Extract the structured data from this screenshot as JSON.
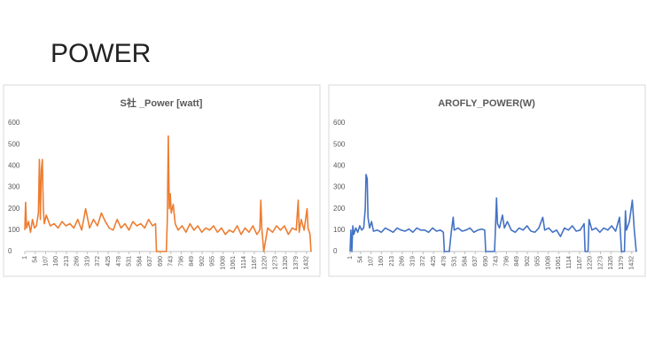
{
  "title": "POWER",
  "chart_data": [
    {
      "type": "line",
      "title": "S社 _Power [watt]",
      "color": "#ed7d31",
      "x": [
        1,
        5,
        10,
        20,
        30,
        40,
        50,
        60,
        70,
        75,
        80,
        85,
        90,
        95,
        100,
        110,
        130,
        150,
        170,
        190,
        210,
        230,
        250,
        270,
        290,
        310,
        330,
        350,
        370,
        390,
        410,
        430,
        450,
        470,
        490,
        510,
        530,
        550,
        570,
        590,
        610,
        630,
        650,
        665,
        670,
        700,
        720,
        725,
        730,
        735,
        740,
        745,
        755,
        765,
        780,
        800,
        820,
        840,
        860,
        880,
        900,
        920,
        940,
        960,
        980,
        1000,
        1020,
        1040,
        1060,
        1080,
        1100,
        1120,
        1140,
        1160,
        1180,
        1195,
        1200,
        1205,
        1215,
        1235,
        1260,
        1280,
        1300,
        1320,
        1340,
        1360,
        1380,
        1390,
        1395,
        1405,
        1420,
        1435,
        1440,
        1450,
        1455
      ],
      "values": [
        100,
        230,
        110,
        140,
        90,
        150,
        110,
        120,
        180,
        430,
        150,
        380,
        430,
        200,
        130,
        170,
        120,
        130,
        110,
        140,
        120,
        130,
        110,
        150,
        100,
        200,
        110,
        150,
        120,
        180,
        140,
        110,
        100,
        150,
        110,
        130,
        100,
        140,
        120,
        130,
        110,
        150,
        120,
        130,
        0,
        0,
        0,
        150,
        540,
        200,
        270,
        180,
        220,
        130,
        100,
        120,
        90,
        130,
        100,
        120,
        90,
        110,
        100,
        120,
        90,
        110,
        80,
        100,
        90,
        120,
        80,
        110,
        90,
        120,
        80,
        100,
        240,
        110,
        0,
        110,
        90,
        120,
        100,
        120,
        80,
        110,
        100,
        240,
        90,
        150,
        100,
        200,
        110,
        80,
        0
      ],
      "xlim": [
        1,
        1460
      ],
      "xticks": [
        1,
        54,
        107,
        160,
        213,
        266,
        319,
        372,
        425,
        478,
        531,
        584,
        637,
        690,
        743,
        796,
        849,
        902,
        955,
        1008,
        1061,
        1114,
        1167,
        1220,
        1273,
        1326,
        1379,
        1432
      ],
      "ylim": [
        0,
        600
      ],
      "yticks": [
        0,
        100,
        200,
        300,
        400,
        500,
        600
      ],
      "grid": false
    },
    {
      "type": "line",
      "title": "AROFLY_POWER(W)",
      "color": "#4472c4",
      "x": [
        1,
        5,
        10,
        15,
        20,
        30,
        40,
        50,
        60,
        70,
        78,
        82,
        88,
        92,
        100,
        110,
        120,
        140,
        160,
        180,
        200,
        220,
        240,
        260,
        280,
        300,
        320,
        340,
        360,
        380,
        400,
        420,
        440,
        460,
        475,
        480,
        505,
        515,
        525,
        530,
        550,
        570,
        590,
        610,
        630,
        650,
        670,
        685,
        690,
        735,
        740,
        745,
        750,
        760,
        775,
        785,
        800,
        820,
        840,
        860,
        880,
        900,
        920,
        940,
        960,
        980,
        990,
        1010,
        1030,
        1050,
        1070,
        1090,
        1110,
        1130,
        1150,
        1170,
        1190,
        1195,
        1210,
        1215,
        1230,
        1250,
        1270,
        1290,
        1310,
        1330,
        1350,
        1370,
        1380,
        1395,
        1400,
        1405,
        1420,
        1435,
        1445,
        1455
      ],
      "values": [
        0,
        100,
        0,
        120,
        80,
        110,
        90,
        120,
        100,
        110,
        200,
        360,
        340,
        160,
        110,
        140,
        95,
        100,
        90,
        110,
        100,
        90,
        110,
        100,
        95,
        105,
        90,
        110,
        100,
        100,
        90,
        110,
        95,
        100,
        90,
        0,
        0,
        90,
        160,
        100,
        110,
        95,
        100,
        110,
        90,
        100,
        105,
        100,
        0,
        0,
        120,
        250,
        130,
        110,
        170,
        110,
        140,
        100,
        90,
        110,
        100,
        120,
        95,
        90,
        110,
        160,
        100,
        110,
        90,
        100,
        70,
        110,
        100,
        120,
        95,
        100,
        130,
        0,
        0,
        150,
        100,
        110,
        90,
        110,
        100,
        120,
        95,
        160,
        0,
        0,
        190,
        100,
        140,
        240,
        100,
        0
      ],
      "xlim": [
        1,
        1460
      ],
      "xticks": [
        1,
        54,
        107,
        160,
        213,
        266,
        319,
        372,
        425,
        478,
        531,
        584,
        637,
        690,
        743,
        796,
        849,
        902,
        955,
        1008,
        1061,
        1114,
        1167,
        1220,
        1273,
        1326,
        1379,
        1432
      ],
      "ylim": [
        0,
        600
      ],
      "yticks": [
        0,
        100,
        200,
        300,
        400,
        500,
        600
      ],
      "grid": false
    }
  ]
}
